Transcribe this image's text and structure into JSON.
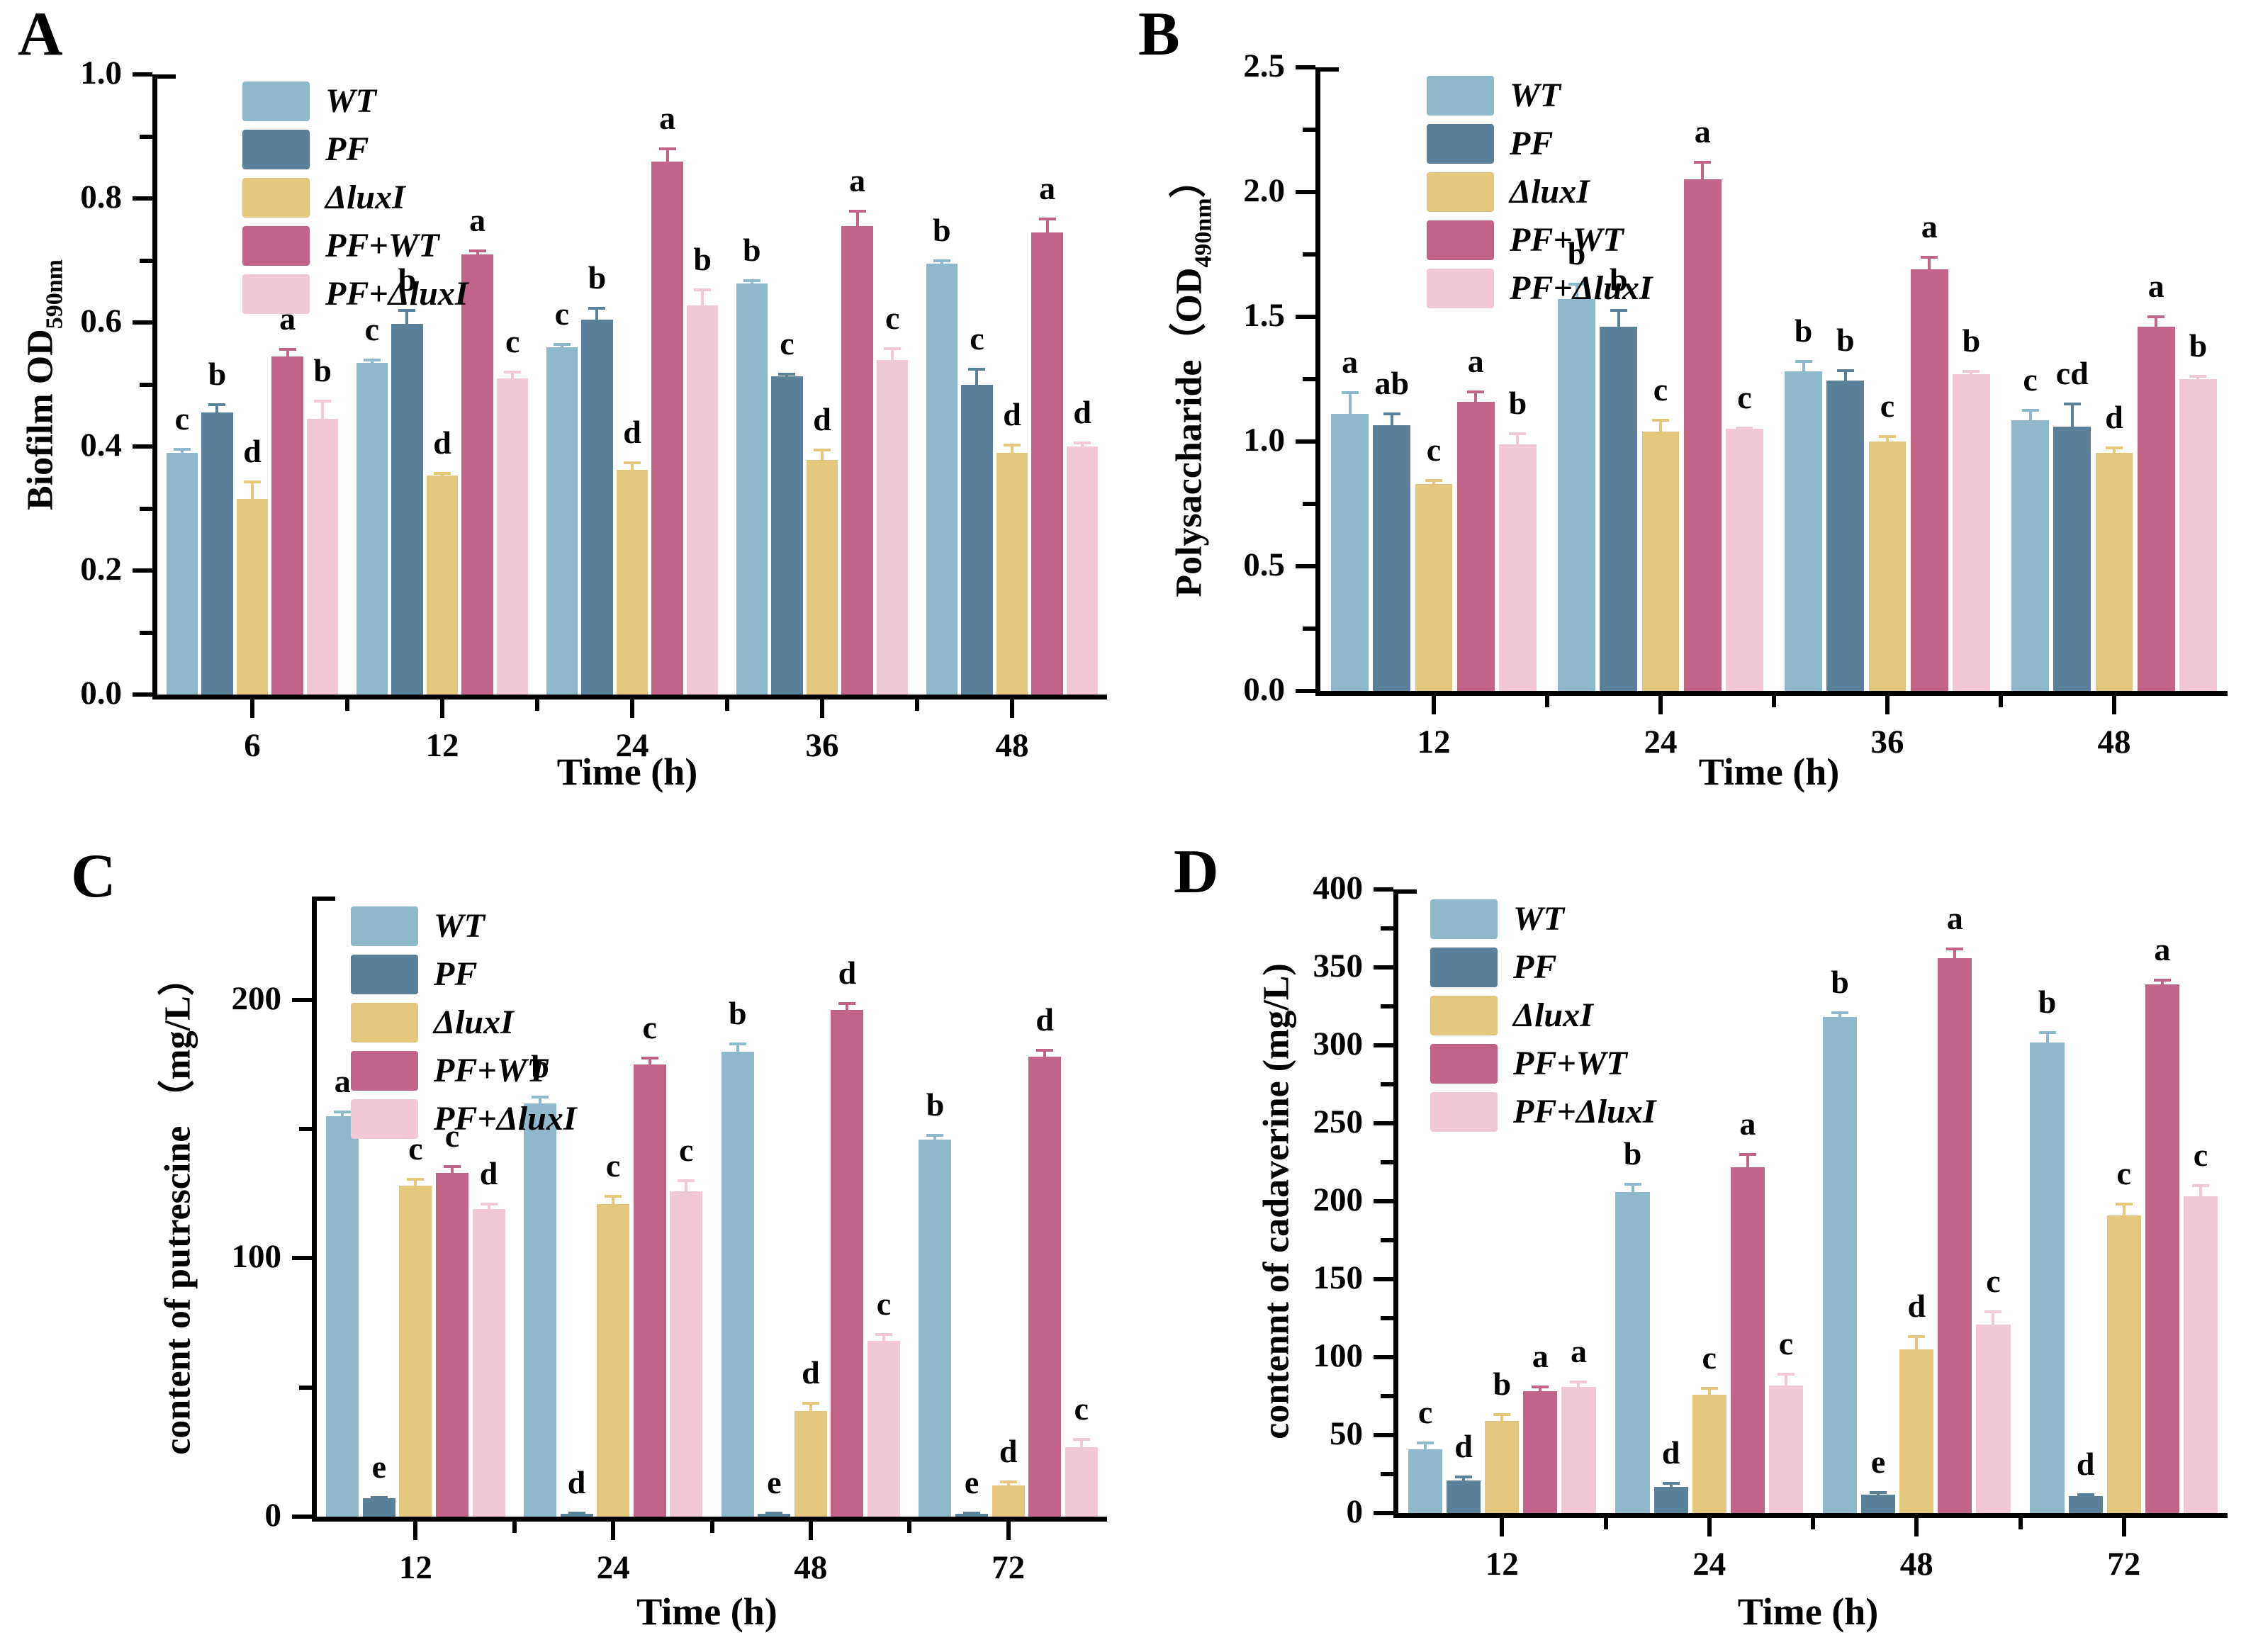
{
  "series_names": [
    "WT",
    "PF",
    "ΔluxI",
    "PF+WT",
    "PF+ΔluxI"
  ],
  "colors": {
    "wt": "#8fb9cb",
    "pf": "#5a8199",
    "dluxi": "#e3c77d",
    "pf_wt": "#c2638a",
    "pf_dluxi": "#f1c9d6",
    "axis": "#000000"
  },
  "chart_data": [
    {
      "panel_label": "A",
      "type": "bar",
      "xlabel": "Time (h)",
      "ylabel_parts": [
        {
          "text": "Biofilm OD",
          "sub": false
        },
        {
          "text": "590nm",
          "sub": true
        }
      ],
      "categories": [
        "6",
        "12",
        "24",
        "36",
        "48"
      ],
      "axis_max": 1.0,
      "yticks": [
        {
          "v": 0.0,
          "label": "0.0"
        },
        {
          "v": 0.2,
          "label": "0.2"
        },
        {
          "v": 0.4,
          "label": "0.4"
        },
        {
          "v": 0.6,
          "label": "0.6"
        },
        {
          "v": 0.8,
          "label": "0.8"
        },
        {
          "v": 1.0,
          "label": "1.0"
        }
      ],
      "yminor": [
        0.1,
        0.3,
        0.5,
        0.7,
        0.9
      ],
      "legend_position": "top-left",
      "grid": false,
      "series": [
        {
          "name": "WT",
          "color": "#8fb9cb",
          "values": [
            0.39,
            0.535,
            0.56,
            0.663,
            0.695
          ],
          "errors": [
            0.005,
            0.005,
            0.005,
            0.005,
            0.004
          ],
          "letters": [
            "c",
            "c",
            "c",
            "b",
            "b"
          ]
        },
        {
          "name": "PF",
          "color": "#5a8199",
          "values": [
            0.455,
            0.598,
            0.605,
            0.513,
            0.5
          ],
          "errors": [
            0.012,
            0.022,
            0.018,
            0.004,
            0.025
          ],
          "letters": [
            "b",
            "b",
            "b",
            "c",
            "c"
          ]
        },
        {
          "name": "ΔluxI",
          "color": "#e3c77d",
          "values": [
            0.315,
            0.353,
            0.362,
            0.378,
            0.39
          ],
          "errors": [
            0.028,
            0.004,
            0.012,
            0.016,
            0.012
          ],
          "letters": [
            "d",
            "d",
            "d",
            "d",
            "d"
          ]
        },
        {
          "name": "PF+WT",
          "color": "#c2638a",
          "values": [
            0.545,
            0.71,
            0.86,
            0.755,
            0.745
          ],
          "errors": [
            0.012,
            0.006,
            0.02,
            0.025,
            0.022
          ],
          "letters": [
            "a",
            "a",
            "a",
            "a",
            "a"
          ]
        },
        {
          "name": "PF+ΔluxI",
          "color": "#f1c9d6",
          "values": [
            0.445,
            0.51,
            0.628,
            0.54,
            0.4
          ],
          "errors": [
            0.028,
            0.01,
            0.025,
            0.018,
            0.006
          ],
          "letters": [
            "b",
            "c",
            "b",
            "c",
            "d"
          ]
        }
      ]
    },
    {
      "panel_label": "B",
      "type": "bar",
      "xlabel": "Time (h)",
      "ylabel_parts": [
        {
          "text": "Polysaccharide（OD",
          "sub": false
        },
        {
          "text": "490nm",
          "sub": true
        },
        {
          "text": "）",
          "sub": false
        }
      ],
      "categories": [
        "12",
        "24",
        "36",
        "48"
      ],
      "axis_max": 2.5,
      "yticks": [
        {
          "v": 0.0,
          "label": "0.0"
        },
        {
          "v": 0.5,
          "label": "0.5"
        },
        {
          "v": 1.0,
          "label": "1.0"
        },
        {
          "v": 1.5,
          "label": "1.5"
        },
        {
          "v": 2.0,
          "label": "2.0"
        },
        {
          "v": 2.5,
          "label": "2.5"
        }
      ],
      "yminor": [
        0.25,
        0.75,
        1.25,
        1.75,
        2.25
      ],
      "legend_position": "top-left",
      "grid": false,
      "series": [
        {
          "name": "WT",
          "color": "#8fb9cb",
          "values": [
            1.11,
            1.57,
            1.28,
            1.085
          ],
          "errors": [
            0.085,
            0.06,
            0.04,
            0.04
          ],
          "letters": [
            "a",
            "b",
            "b",
            "c"
          ]
        },
        {
          "name": "PF",
          "color": "#5a8199",
          "values": [
            1.065,
            1.46,
            1.245,
            1.06
          ],
          "errors": [
            0.045,
            0.065,
            0.04,
            0.09
          ],
          "letters": [
            "ab",
            "b",
            "b",
            "cd"
          ]
        },
        {
          "name": "ΔluxI",
          "color": "#e3c77d",
          "values": [
            0.83,
            1.04,
            1.0,
            0.955
          ],
          "errors": [
            0.015,
            0.045,
            0.02,
            0.02
          ],
          "letters": [
            "c",
            "c",
            "c",
            "d"
          ]
        },
        {
          "name": "PF+WT",
          "color": "#c2638a",
          "values": [
            1.16,
            2.05,
            1.69,
            1.46
          ],
          "errors": [
            0.04,
            0.07,
            0.05,
            0.04
          ],
          "letters": [
            "a",
            "a",
            "a",
            "a"
          ]
        },
        {
          "name": "PF+ΔluxI",
          "color": "#f1c9d6",
          "values": [
            0.99,
            1.05,
            1.27,
            1.25
          ],
          "errors": [
            0.04,
            0.005,
            0.01,
            0.01
          ],
          "letters": [
            "b",
            "c",
            "b",
            "b"
          ]
        }
      ]
    },
    {
      "panel_label": "C",
      "type": "bar",
      "xlabel": "Time (h)",
      "ylabel_parts": [
        {
          "text": "content of putrescine （mg/L）",
          "sub": false
        }
      ],
      "categories": [
        "12",
        "24",
        "48",
        "72"
      ],
      "axis_max": 240,
      "yticks": [
        {
          "v": 0,
          "label": "0"
        },
        {
          "v": 100,
          "label": "100"
        },
        {
          "v": 200,
          "label": "200"
        }
      ],
      "yminor": [
        50,
        150
      ],
      "legend_position": "top-left",
      "grid": false,
      "series": [
        {
          "name": "WT",
          "color": "#8fb9cb",
          "values": [
            155,
            160,
            180,
            146
          ],
          "errors": [
            1.5,
            2.5,
            3,
            1.5
          ],
          "letters": [
            "a",
            "b",
            "b",
            "b"
          ]
        },
        {
          "name": "PF",
          "color": "#5a8199",
          "values": [
            7,
            1,
            1,
            1
          ],
          "errors": [
            0.5,
            0.3,
            0.3,
            0.3
          ],
          "letters": [
            "e",
            "d",
            "e",
            "e"
          ]
        },
        {
          "name": "ΔluxI",
          "color": "#e3c77d",
          "values": [
            128,
            121,
            41,
            12
          ],
          "errors": [
            2.5,
            3,
            3,
            1.5
          ],
          "letters": [
            "c",
            "c",
            "d",
            "d"
          ]
        },
        {
          "name": "PF+WT",
          "color": "#c2638a",
          "values": [
            133,
            175,
            196,
            178
          ],
          "errors": [
            2.5,
            2.5,
            2.5,
            2.5
          ],
          "letters": [
            "c",
            "c",
            "d",
            "d"
          ]
        },
        {
          "name": "PF+ΔluxI",
          "color": "#f1c9d6",
          "values": [
            119,
            126,
            68,
            27
          ],
          "errors": [
            2,
            4,
            2.5,
            3
          ],
          "letters": [
            "d",
            "c",
            "c",
            "c"
          ]
        }
      ]
    },
    {
      "panel_label": "D",
      "type": "bar",
      "xlabel": "Time (h)",
      "ylabel_parts": [
        {
          "text": "contennt of cadaverine (mg/L)",
          "sub": false
        }
      ],
      "categories": [
        "12",
        "24",
        "48",
        "72"
      ],
      "axis_max": 400,
      "yticks": [
        {
          "v": 0,
          "label": "0"
        },
        {
          "v": 50,
          "label": "50"
        },
        {
          "v": 100,
          "label": "100"
        },
        {
          "v": 150,
          "label": "150"
        },
        {
          "v": 200,
          "label": "200"
        },
        {
          "v": 250,
          "label": "250"
        },
        {
          "v": 300,
          "label": "300"
        },
        {
          "v": 350,
          "label": "350"
        },
        {
          "v": 400,
          "label": "400"
        }
      ],
      "yminor": [
        25,
        75,
        125,
        175,
        225,
        275,
        325,
        375
      ],
      "legend_position": "top-left",
      "grid": false,
      "series": [
        {
          "name": "WT",
          "color": "#8fb9cb",
          "values": [
            41,
            206,
            318,
            302
          ],
          "errors": [
            4,
            5,
            3,
            6
          ],
          "letters": [
            "c",
            "b",
            "b",
            "b"
          ]
        },
        {
          "name": "PF",
          "color": "#5a8199",
          "values": [
            21,
            17,
            12,
            11
          ],
          "errors": [
            2,
            2,
            1,
            1
          ],
          "letters": [
            "d",
            "d",
            "e",
            "d"
          ]
        },
        {
          "name": "ΔluxI",
          "color": "#e3c77d",
          "values": [
            59,
            76,
            105,
            191
          ],
          "errors": [
            4,
            4,
            8,
            7
          ],
          "letters": [
            "b",
            "c",
            "d",
            "c"
          ]
        },
        {
          "name": "PF+WT",
          "color": "#c2638a",
          "values": [
            78,
            222,
            356,
            339
          ],
          "errors": [
            3,
            8,
            6,
            3
          ],
          "letters": [
            "a",
            "a",
            "a",
            "a"
          ]
        },
        {
          "name": "PF+ΔluxI",
          "color": "#f1c9d6",
          "values": [
            81,
            82,
            121,
            203
          ],
          "errors": [
            3,
            7,
            8,
            7
          ],
          "letters": [
            "a",
            "c",
            "c",
            "c"
          ]
        }
      ]
    }
  ]
}
